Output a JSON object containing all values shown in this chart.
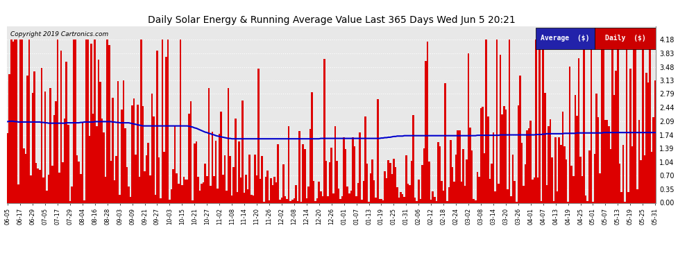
{
  "title": "Daily Solar Energy & Running Average Value Last 365 Days Wed Jun 5 20:21",
  "copyright": "Copyright 2019 Cartronics.com",
  "background_color": "#ffffff",
  "plot_bg_color": "#e8e8e8",
  "grid_color": "#ffffff",
  "bar_color": "#dd0000",
  "line_color": "#0000cc",
  "ylim": [
    0.0,
    4.53
  ],
  "yticks": [
    0.0,
    0.35,
    0.7,
    1.04,
    1.39,
    1.74,
    2.09,
    2.44,
    2.79,
    3.13,
    3.48,
    3.83,
    4.18
  ],
  "legend_avg_bg": "#2222aa",
  "legend_daily_bg": "#cc0000",
  "legend_text_color": "#ffffff",
  "x_labels": [
    "06-05",
    "06-17",
    "06-29",
    "07-05",
    "07-17",
    "07-29",
    "08-04",
    "08-16",
    "08-28",
    "09-03",
    "09-09",
    "09-21",
    "09-27",
    "10-03",
    "10-15",
    "10-21",
    "10-27",
    "11-02",
    "11-08",
    "11-14",
    "11-20",
    "11-26",
    "12-02",
    "12-08",
    "12-14",
    "12-20",
    "12-26",
    "01-01",
    "01-07",
    "01-13",
    "01-19",
    "01-25",
    "01-31",
    "02-06",
    "02-12",
    "02-18",
    "02-24",
    "03-02",
    "03-08",
    "03-14",
    "03-20",
    "03-26",
    "04-01",
    "04-07",
    "04-13",
    "04-19",
    "04-25",
    "05-01",
    "05-07",
    "05-13",
    "05-19",
    "05-25",
    "05-31"
  ],
  "n_bars": 365,
  "avg_curve": [
    2.08,
    2.09,
    2.09,
    2.09,
    2.08,
    2.08,
    2.07,
    2.07,
    2.07,
    2.07,
    2.07,
    2.07,
    2.07,
    2.07,
    2.07,
    2.07,
    2.07,
    2.07,
    2.07,
    2.06,
    2.06,
    2.05,
    2.05,
    2.04,
    2.04,
    2.04,
    2.04,
    2.04,
    2.04,
    2.04,
    2.04,
    2.04,
    2.04,
    2.05,
    2.05,
    2.05,
    2.05,
    2.05,
    2.05,
    2.05,
    2.05,
    2.06,
    2.06,
    2.07,
    2.07,
    2.07,
    2.07,
    2.07,
    2.07,
    2.08,
    2.08,
    2.08,
    2.08,
    2.08,
    2.08,
    2.08,
    2.08,
    2.08,
    2.08,
    2.07,
    2.07,
    2.06,
    2.06,
    2.05,
    2.05,
    2.05,
    2.05,
    2.05,
    2.05,
    2.04,
    2.03,
    2.02,
    2.01,
    2.0,
    1.99,
    1.98,
    1.97,
    1.97,
    1.97,
    1.97,
    1.97,
    1.97,
    1.97,
    1.97,
    1.97,
    1.97,
    1.97,
    1.97,
    1.97,
    1.97,
    1.97,
    1.97,
    1.97,
    1.97,
    1.97,
    1.97,
    1.97,
    1.97,
    1.97,
    1.97,
    1.97,
    1.97,
    1.96,
    1.95,
    1.94,
    1.92,
    1.91,
    1.89,
    1.87,
    1.85,
    1.83,
    1.81,
    1.8,
    1.78,
    1.77,
    1.75,
    1.74,
    1.72,
    1.71,
    1.7,
    1.69,
    1.68,
    1.67,
    1.66,
    1.65,
    1.65,
    1.64,
    1.64,
    1.64,
    1.64,
    1.64,
    1.64,
    1.64,
    1.64,
    1.64,
    1.64,
    1.64,
    1.64,
    1.64,
    1.64,
    1.64,
    1.64,
    1.64,
    1.64,
    1.64,
    1.64,
    1.64,
    1.64,
    1.64,
    1.64,
    1.64,
    1.64,
    1.64,
    1.64,
    1.64,
    1.64,
    1.64,
    1.64,
    1.64,
    1.64,
    1.64,
    1.64,
    1.64,
    1.64,
    1.64,
    1.64,
    1.64,
    1.64,
    1.64,
    1.64,
    1.64,
    1.64,
    1.64,
    1.64,
    1.64,
    1.64,
    1.65,
    1.65,
    1.65,
    1.65,
    1.65,
    1.65,
    1.65,
    1.65,
    1.65,
    1.65,
    1.65,
    1.65,
    1.65,
    1.65,
    1.65,
    1.65,
    1.65,
    1.65,
    1.65,
    1.65,
    1.65,
    1.65,
    1.65,
    1.65,
    1.65,
    1.65,
    1.65,
    1.65,
    1.65,
    1.65,
    1.65,
    1.65,
    1.65,
    1.65,
    1.66,
    1.66,
    1.67,
    1.67,
    1.68,
    1.68,
    1.69,
    1.7,
    1.7,
    1.71,
    1.71,
    1.71,
    1.71,
    1.72,
    1.72,
    1.72,
    1.72,
    1.72,
    1.72,
    1.72,
    1.72,
    1.72,
    1.72,
    1.72,
    1.72,
    1.72,
    1.72,
    1.72,
    1.72,
    1.72,
    1.72,
    1.72,
    1.72,
    1.72,
    1.72,
    1.72,
    1.72,
    1.72,
    1.72,
    1.72,
    1.72,
    1.72,
    1.72,
    1.72,
    1.72,
    1.72,
    1.72,
    1.72,
    1.72,
    1.72,
    1.72,
    1.72,
    1.72,
    1.72,
    1.73,
    1.73,
    1.73,
    1.73,
    1.73,
    1.73,
    1.73,
    1.73,
    1.73,
    1.73,
    1.73,
    1.73,
    1.73,
    1.74,
    1.74,
    1.74,
    1.74,
    1.74,
    1.74,
    1.74,
    1.74,
    1.74,
    1.74,
    1.74,
    1.74,
    1.74,
    1.74,
    1.74,
    1.74,
    1.74,
    1.74,
    1.74,
    1.74,
    1.75,
    1.75,
    1.75,
    1.75,
    1.76,
    1.76,
    1.77,
    1.77,
    1.77,
    1.77,
    1.77,
    1.77,
    1.77,
    1.77,
    1.77,
    1.77,
    1.78,
    1.78,
    1.78,
    1.78,
    1.78,
    1.78,
    1.78,
    1.79,
    1.79,
    1.79,
    1.79,
    1.79,
    1.79,
    1.79,
    1.79,
    1.79,
    1.79,
    1.79,
    1.79,
    1.79,
    1.79,
    1.79,
    1.8,
    1.8,
    1.8,
    1.8,
    1.8,
    1.8,
    1.8,
    1.8,
    1.8,
    1.8,
    1.8,
    1.8,
    1.8,
    1.8,
    1.8,
    1.8,
    1.8,
    1.8,
    1.8,
    1.8,
    1.8,
    1.8,
    1.8,
    1.8,
    1.8,
    1.8,
    1.8,
    1.8,
    1.8,
    1.8
  ]
}
